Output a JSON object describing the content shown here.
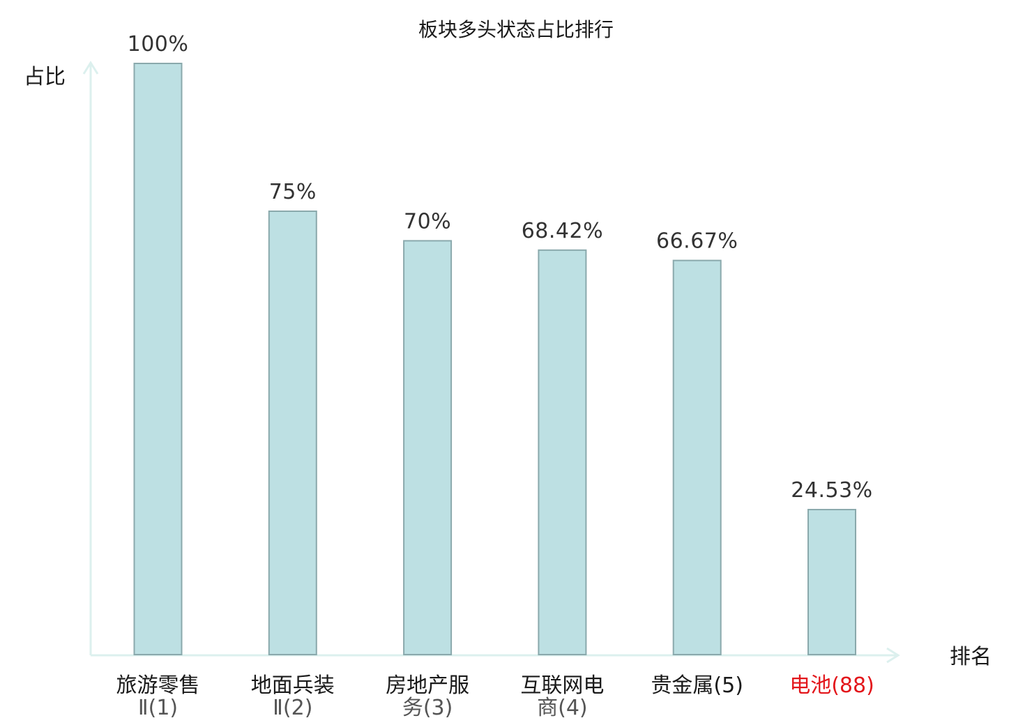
{
  "chart_data": {
    "type": "bar",
    "title": "板块多头状态占比排行",
    "xlabel": "排名",
    "ylabel": "占比",
    "ylim": [
      0,
      100
    ],
    "categories": [
      {
        "lines": [
          "旅游零售",
          "Ⅱ(1)"
        ],
        "highlight": false
      },
      {
        "lines": [
          "地面兵装",
          "Ⅱ(2)"
        ],
        "highlight": false
      },
      {
        "lines": [
          "房地产服",
          "务(3)"
        ],
        "highlight": false
      },
      {
        "lines": [
          "互联网电",
          "商(4)"
        ],
        "highlight": false
      },
      {
        "lines": [
          "贵金属(5)"
        ],
        "highlight": false
      },
      {
        "lines": [
          "电池(88)"
        ],
        "highlight": true
      }
    ],
    "values": [
      100,
      75,
      70,
      68.42,
      66.67,
      24.53
    ],
    "value_labels": [
      "100%",
      "75%",
      "70%",
      "68.42%",
      "66.67%",
      "24.53%"
    ],
    "grid": false,
    "legend": "none"
  },
  "colors": {
    "bar_fill": "#bde0e3",
    "bar_stroke": "#8aa9ac",
    "axis": "#dcf0ee",
    "highlight_text": "#e3161b"
  }
}
